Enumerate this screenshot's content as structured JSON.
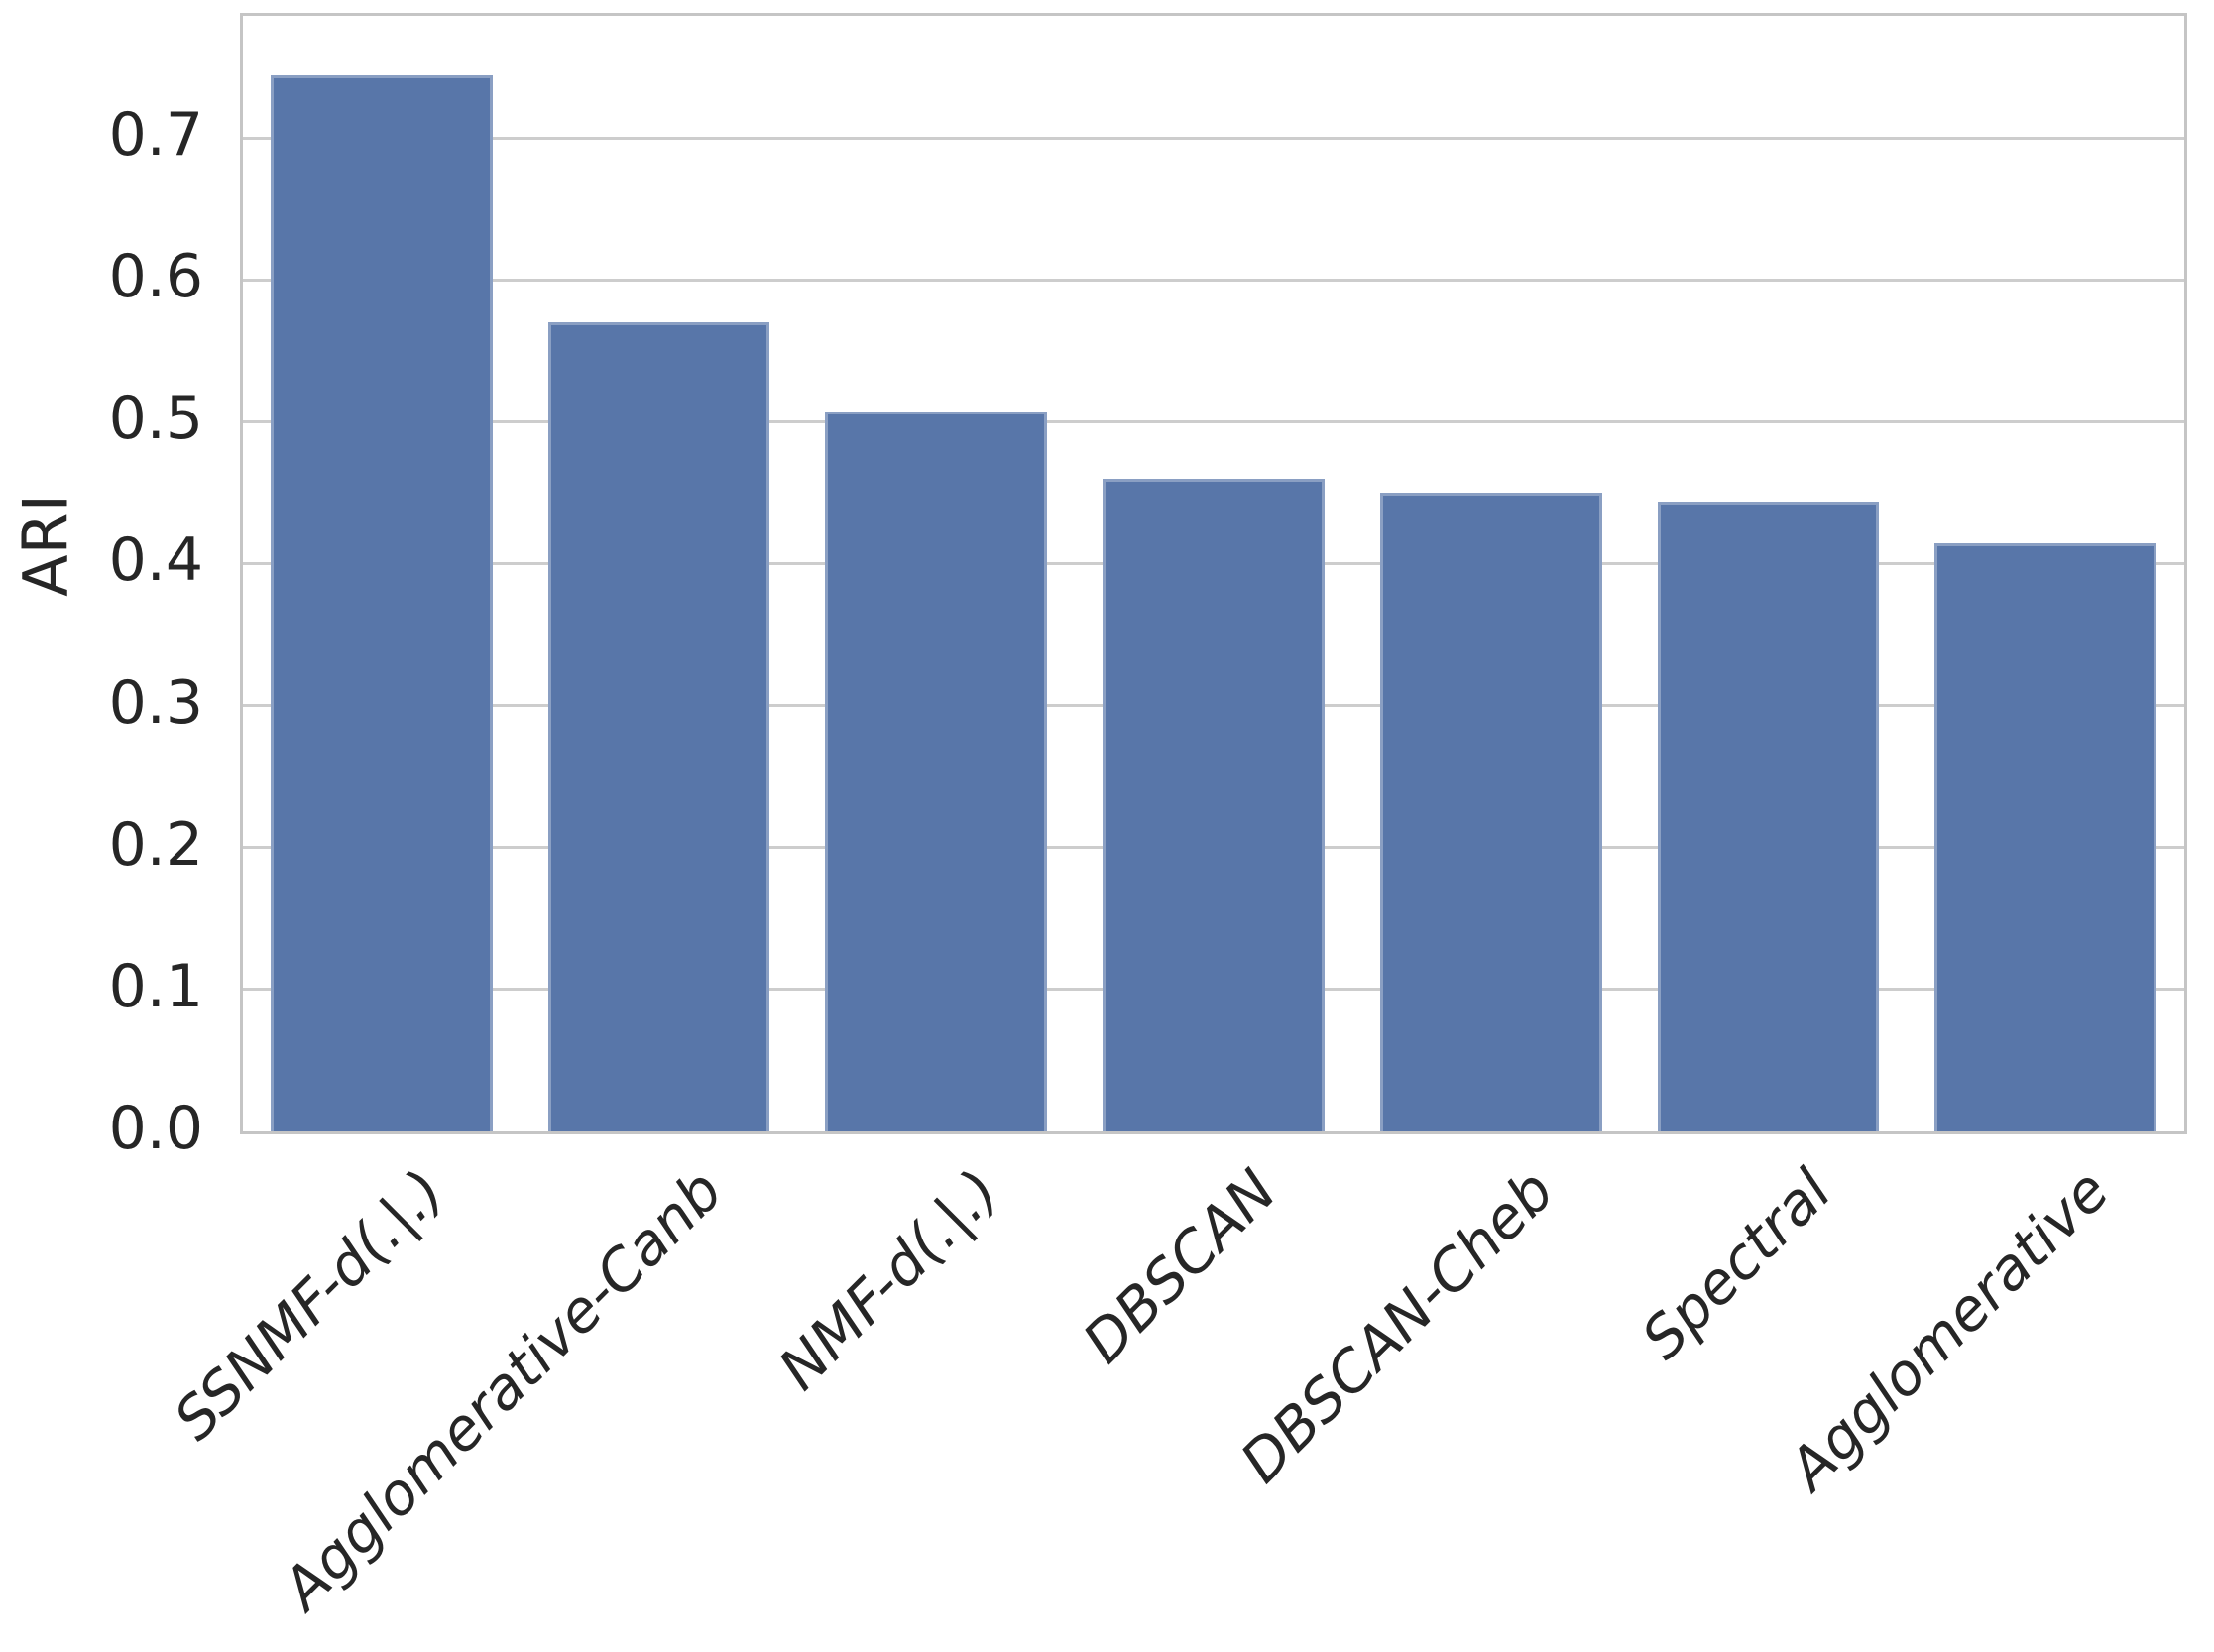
{
  "figure": {
    "background": "#ffffff"
  },
  "chart_data": {
    "type": "bar",
    "title": "",
    "xlabel": "",
    "ylabel": "ARI",
    "categories": [
      "SSNMF-d(.|.)",
      "Agglomerative-Canb",
      "NMF-d(.|.)",
      "DBSCAN",
      "DBSCAN-Cheb",
      "Spectral",
      "Agglomerative"
    ],
    "values": [
      0.744,
      0.57,
      0.507,
      0.46,
      0.45,
      0.444,
      0.414
    ],
    "ylim": [
      0,
      0.786
    ],
    "yticks": [
      0.0,
      0.1,
      0.2,
      0.3,
      0.4,
      0.5,
      0.6,
      0.7
    ],
    "ytick_labels": [
      "0.0",
      "0.1",
      "0.2",
      "0.3",
      "0.4",
      "0.5",
      "0.6",
      "0.7"
    ],
    "grid": "horizontal",
    "legend": "none",
    "bar_width_fraction": 0.8,
    "bar_color": "#5876a9",
    "bar_edge_color": "rgba(255,255,255,0.30)",
    "grid_color": "#cdcdcd",
    "spine_color": "#c5c5c5",
    "text_color": "#262626",
    "xtick_style": "italic, rotated 45 degrees"
  }
}
